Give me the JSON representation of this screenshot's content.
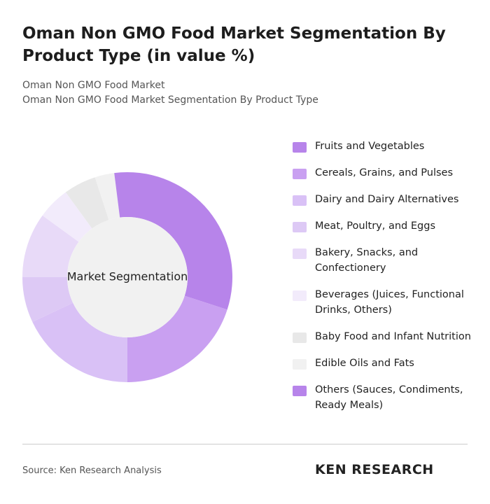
{
  "chart_data": {
    "type": "donut",
    "title": "Oman Non GMO Food Market Segmentation By Product Type (in value %)",
    "subtitle": [
      "Oman Non GMO Food Market",
      "Oman Non GMO Food Market Segmentation By Product Type"
    ],
    "center_label": "Market Segmentation",
    "categories": [
      "Fruits and Vegetables",
      "Cereals, Grains, and Pulses",
      "Dairy and Dairy Alternatives",
      "Meat, Poultry, and Eggs",
      "Bakery, Snacks, and Confectionery",
      "Beverages (Juices, Functional Drinks, Others)",
      "Baby Food and Infant Nutrition",
      "Edible Oils and Fats",
      "Others (Sauces, Condiments, Ready Meals)"
    ],
    "values": [
      30,
      20,
      18,
      7,
      10,
      5,
      5,
      3,
      2
    ],
    "colors": [
      "#b784ea",
      "#c9a0f1",
      "#d9c1f6",
      "#ddc9f5",
      "#e8daf8",
      "#f2ebfb",
      "#e8e8e8",
      "#f1f1f1",
      "#b784ea"
    ],
    "source": "Source: Ken Research Analysis",
    "brand": "KEN RESEARCH"
  }
}
